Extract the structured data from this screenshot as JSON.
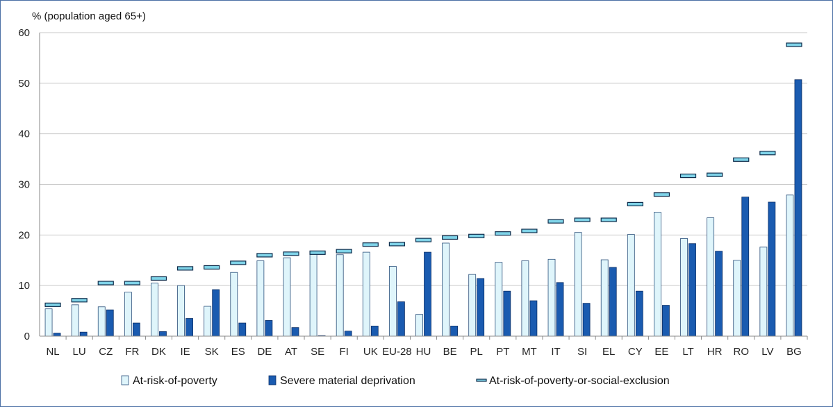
{
  "chart_data": {
    "type": "bar",
    "title": "",
    "ylabel": "% (population aged 65+)",
    "xlabel": "",
    "ylim": [
      0,
      60
    ],
    "yticks": [
      0,
      10,
      20,
      30,
      40,
      50,
      60
    ],
    "grid": true,
    "legend_position": "bottom",
    "categories": [
      "NL",
      "LU",
      "CZ",
      "FR",
      "DK",
      "IE",
      "SK",
      "ES",
      "DE",
      "AT",
      "SE",
      "FI",
      "UK",
      "EU-28",
      "HU",
      "BE",
      "PL",
      "PT",
      "MT",
      "IT",
      "SI",
      "EL",
      "CY",
      "EE",
      "LT",
      "HR",
      "RO",
      "LV",
      "BG"
    ],
    "series": [
      {
        "name": "At-risk-of-poverty",
        "kind": "bar",
        "color": "#dff5fb",
        "values": [
          5.4,
          6.2,
          5.8,
          8.7,
          10.5,
          10.0,
          5.9,
          12.6,
          14.9,
          15.5,
          16.4,
          16.1,
          16.6,
          13.8,
          4.3,
          18.4,
          12.2,
          14.6,
          14.9,
          15.2,
          20.5,
          15.1,
          20.1,
          24.5,
          19.3,
          23.4,
          15.0,
          17.6,
          27.9
        ]
      },
      {
        "name": "Severe material deprivation",
        "kind": "bar",
        "color": "#1a5bb0",
        "values": [
          0.6,
          0.8,
          5.2,
          2.6,
          0.9,
          3.5,
          9.2,
          2.6,
          3.1,
          1.7,
          0.1,
          1.0,
          2.0,
          6.8,
          16.6,
          2.0,
          11.4,
          8.9,
          7.0,
          10.6,
          6.5,
          13.6,
          8.9,
          6.1,
          18.3,
          16.8,
          27.5,
          26.5,
          50.7
        ]
      },
      {
        "name": "At-risk-of-poverty-or-social-exclusion",
        "kind": "marker",
        "color": "#7fd3e8",
        "values": [
          6.2,
          7.1,
          10.5,
          10.5,
          11.4,
          13.4,
          13.6,
          14.5,
          16.0,
          16.3,
          16.5,
          16.8,
          18.1,
          18.2,
          19.0,
          19.5,
          19.8,
          20.3,
          20.8,
          22.7,
          23.0,
          23.0,
          26.1,
          28.0,
          31.7,
          31.9,
          34.9,
          36.2,
          57.6
        ]
      }
    ]
  }
}
